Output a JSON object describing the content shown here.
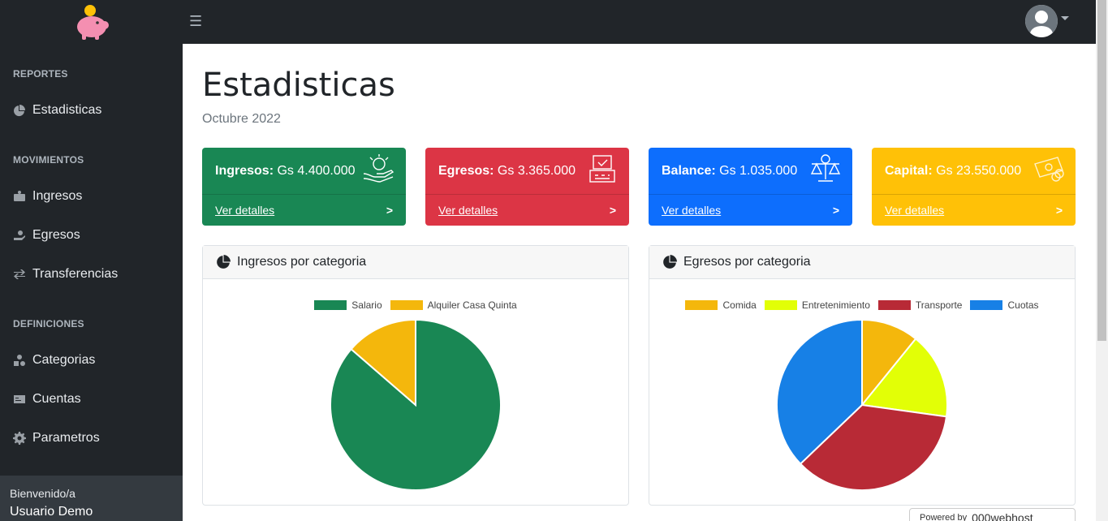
{
  "sidebar": {
    "sections": [
      {
        "heading": "REPORTES",
        "items": [
          {
            "label": "Estadisticas",
            "icon": "pie-icon"
          }
        ]
      },
      {
        "heading": "MOVIMIENTOS",
        "items": [
          {
            "label": "Ingresos",
            "icon": "money-icon"
          },
          {
            "label": "Egresos",
            "icon": "hand-icon"
          },
          {
            "label": "Transferencias",
            "icon": "exchange-icon"
          }
        ]
      },
      {
        "heading": "DEFINICIONES",
        "items": [
          {
            "label": "Categorias",
            "icon": "shapes-icon"
          },
          {
            "label": "Cuentas",
            "icon": "card-icon"
          },
          {
            "label": "Parametros",
            "icon": "gear-icon"
          }
        ]
      }
    ],
    "footer": {
      "greeting": "Bienvenido/a",
      "user": "Usuario Demo"
    }
  },
  "topbar": {
    "menu_icon": "☰"
  },
  "page": {
    "title": "Estadisticas",
    "subtitle": "Octubre 2022"
  },
  "cards": [
    {
      "label": "Ingresos:",
      "value": "Gs 4.400.000",
      "link": "Ver detalles",
      "color": "#198754"
    },
    {
      "label": "Egresos:",
      "value": "Gs 3.365.000",
      "link": "Ver detalles",
      "color": "#dc3545"
    },
    {
      "label": "Balance:",
      "value": "Gs 1.035.000",
      "link": "Ver detalles",
      "color": "#0d6efd"
    },
    {
      "label": "Capital:",
      "value": "Gs 23.550.000",
      "link": "Ver detalles",
      "color": "#ffc107"
    }
  ],
  "chart_data": [
    {
      "type": "pie",
      "title": "Ingresos por categoria",
      "categories": [
        "Salario",
        "Alquiler Casa Quinta"
      ],
      "values": [
        3800000,
        600000
      ],
      "colors": [
        "#198754",
        "#f4b70c"
      ]
    },
    {
      "type": "pie",
      "title": "Egresos por categoria",
      "categories": [
        "Comida",
        "Entretenimiento",
        "Transporte",
        "Cuotas"
      ],
      "values": [
        365000,
        550000,
        1200000,
        1250000
      ],
      "colors": [
        "#f4b70c",
        "#e2ff06",
        "#b82a36",
        "#1780e6"
      ]
    }
  ],
  "powered": {
    "prefix": "Powered by",
    "brand": "000webhost"
  }
}
